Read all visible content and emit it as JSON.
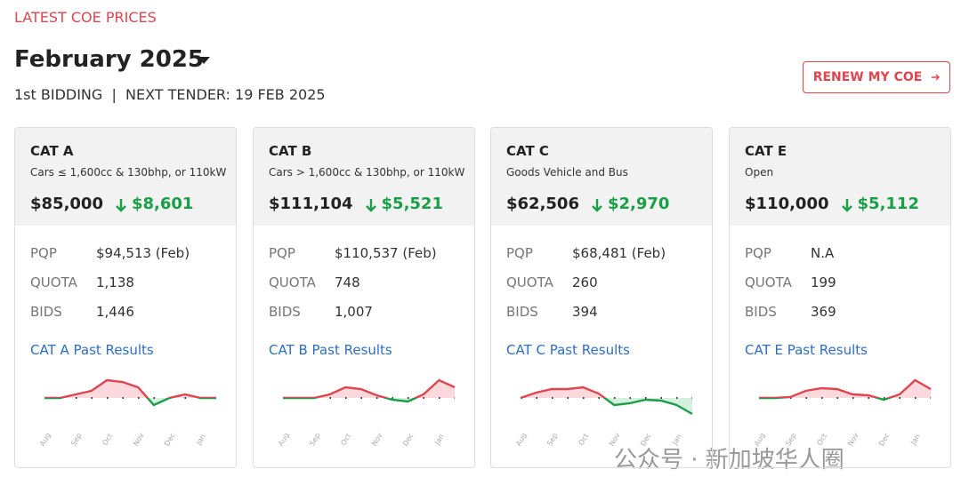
{
  "header": {
    "section": "LATEST COE PRICES",
    "month": "February 2025",
    "round": "1st BIDDING",
    "separator": "|",
    "next_tender": "NEXT TENDER: 19 FEB 2025",
    "button": "RENEW MY COE"
  },
  "cards": [
    {
      "category": "CAT A",
      "description": "Cars ≤ 1,600cc & 130bhp, or 110kW",
      "premium": "$85,000",
      "change": "$8,601",
      "rows": [
        {
          "label": "PQP",
          "value": "$94,513 (Feb)"
        },
        {
          "label": "QUOTA",
          "value": "1,138"
        },
        {
          "label": "BIDS",
          "value": "1,446"
        }
      ],
      "link": "CAT A Past Results",
      "trend": {
        "type": "line",
        "month_labels": [
          "Aug",
          "Sep",
          "Oct",
          "Nov",
          "Dec",
          "Jan"
        ],
        "baseline": 0,
        "values": [
          0,
          0,
          4,
          8,
          20,
          18,
          12,
          -8,
          0,
          4,
          0,
          0
        ]
      }
    },
    {
      "category": "CAT B",
      "description": "Cars > 1,600cc & 130bhp, or 110kW",
      "premium": "$111,104",
      "change": "$5,521",
      "rows": [
        {
          "label": "PQP",
          "value": "$110,537 (Feb)"
        },
        {
          "label": "QUOTA",
          "value": "748"
        },
        {
          "label": "BIDS",
          "value": "1,007"
        }
      ],
      "link": "CAT B Past Results",
      "trend": {
        "type": "line",
        "month_labels": [
          "Aug",
          "Sep",
          "Oct",
          "Nov",
          "Dec",
          "Jan"
        ],
        "baseline": 0,
        "values": [
          0,
          0,
          0,
          4,
          12,
          10,
          3,
          -2,
          -4,
          4,
          20,
          12
        ]
      }
    },
    {
      "category": "CAT C",
      "description": "Goods Vehicle and Bus",
      "premium": "$62,506",
      "change": "$2,970",
      "rows": [
        {
          "label": "PQP",
          "value": "$68,481 (Feb)"
        },
        {
          "label": "QUOTA",
          "value": "260"
        },
        {
          "label": "BIDS",
          "value": "394"
        }
      ],
      "link": "CAT C Past Results",
      "trend": {
        "type": "line",
        "month_labels": [
          "Aug",
          "Sep",
          "Oct",
          "Nov",
          "Dec",
          "Jan"
        ],
        "baseline": 0,
        "values": [
          0,
          6,
          10,
          10,
          12,
          5,
          -8,
          -6,
          -2,
          -3,
          -8,
          -18
        ]
      }
    },
    {
      "category": "CAT E",
      "description": "Open",
      "premium": "$110,000",
      "change": "$5,112",
      "rows": [
        {
          "label": "PQP",
          "value": "N.A"
        },
        {
          "label": "QUOTA",
          "value": "199"
        },
        {
          "label": "BIDS",
          "value": "369"
        }
      ],
      "link": "CAT E Past Results",
      "trend": {
        "type": "line",
        "month_labels": [
          "Aug",
          "Sep",
          "Oct",
          "Nov",
          "Dec",
          "Jan"
        ],
        "baseline": 0,
        "values": [
          0,
          0,
          1,
          8,
          11,
          10,
          4,
          3,
          -2,
          4,
          20,
          10
        ]
      }
    }
  ],
  "watermark": "公众号 · 新加坡华人圈"
}
